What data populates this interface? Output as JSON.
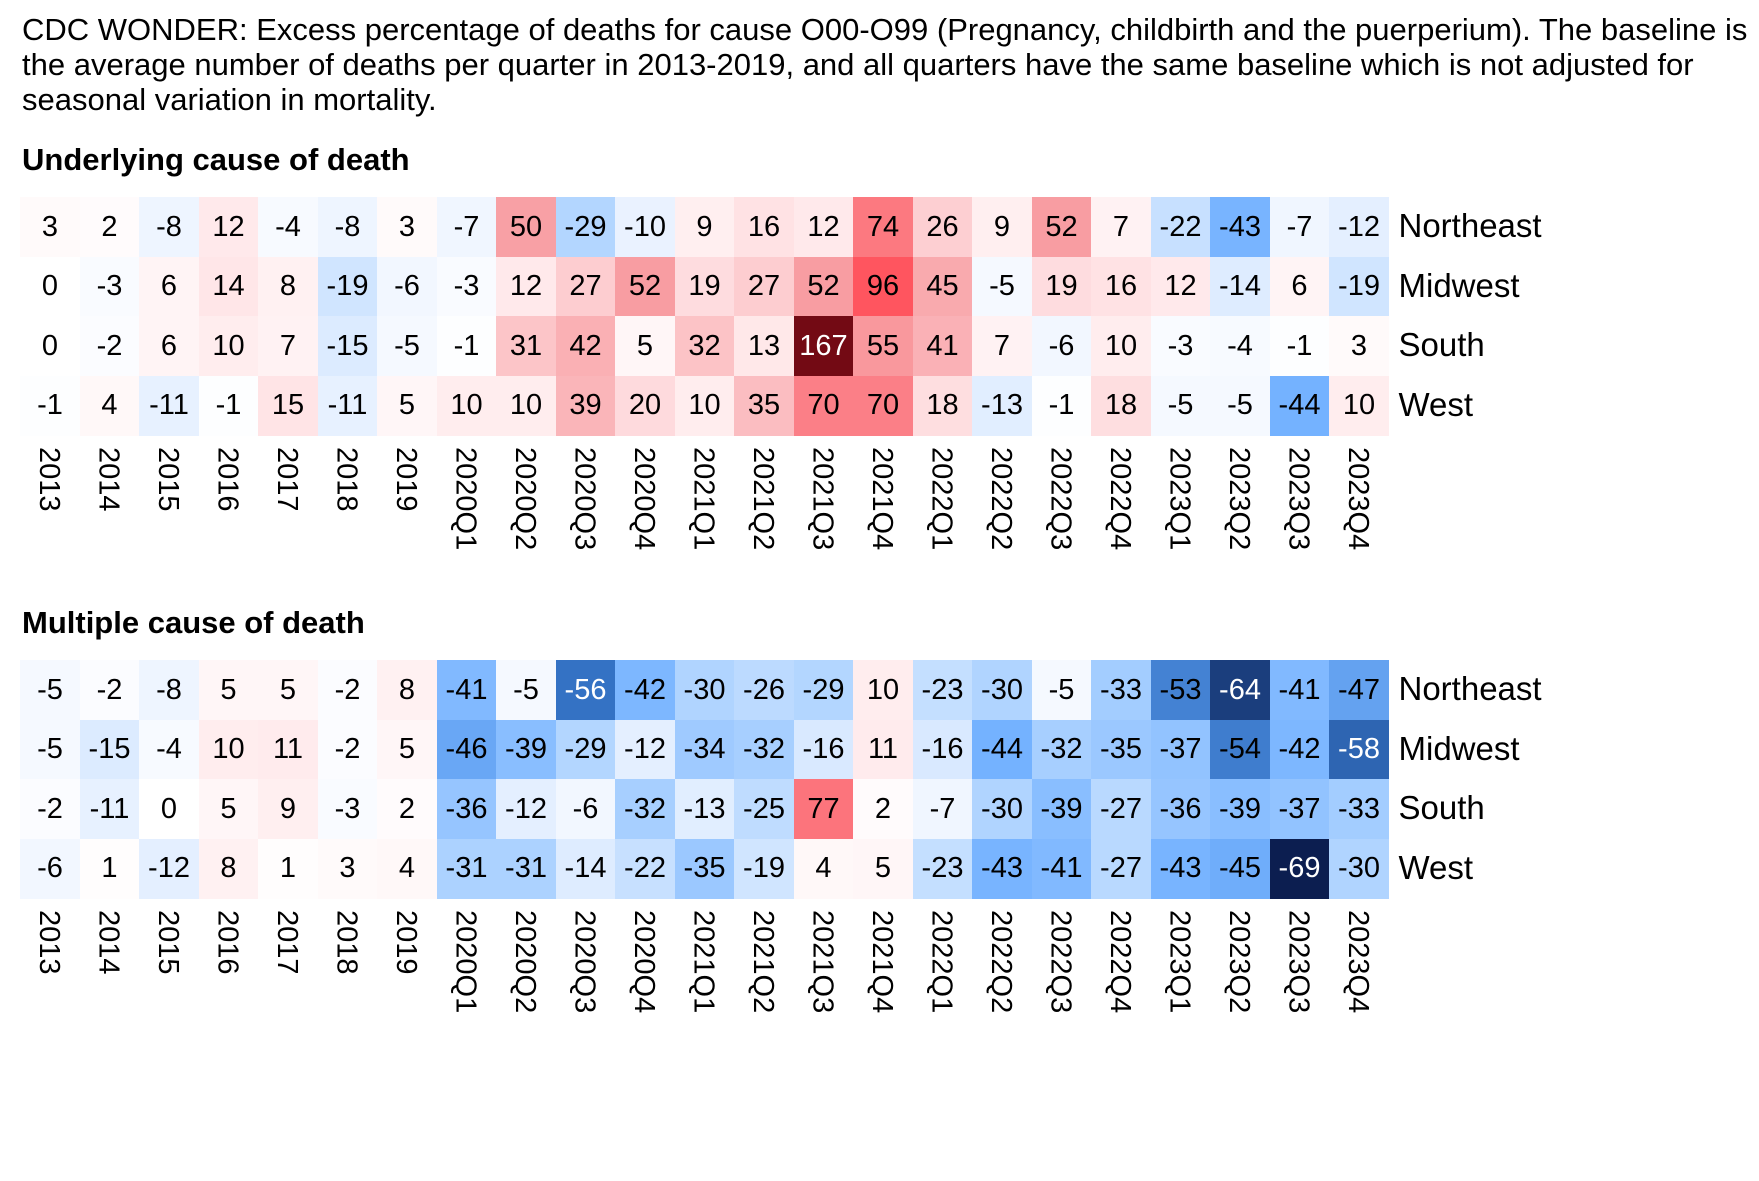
{
  "caption": "CDC WONDER: Excess percentage of deaths for cause O00-O99 (Pregnancy, childbirth and the puerperium). The baseline is the average number of deaths per quarter in 2013-2019, and all quarters have the same baseline which is not adjusted for seasonal variation in mortality.",
  "chart_data": [
    {
      "type": "heatmap",
      "title": "Underlying cause of death",
      "columns": [
        "2013",
        "2014",
        "2015",
        "2016",
        "2017",
        "2018",
        "2019",
        "2020Q1",
        "2020Q2",
        "2020Q3",
        "2020Q4",
        "2021Q1",
        "2021Q2",
        "2021Q3",
        "2021Q4",
        "2022Q1",
        "2022Q2",
        "2022Q3",
        "2022Q4",
        "2023Q1",
        "2023Q2",
        "2023Q3",
        "2023Q4"
      ],
      "rows": [
        "Northeast",
        "Midwest",
        "South",
        "West"
      ],
      "values": [
        [
          3,
          2,
          -8,
          12,
          -4,
          -8,
          3,
          -7,
          50,
          -29,
          -10,
          9,
          16,
          12,
          74,
          26,
          9,
          52,
          7,
          -22,
          -43,
          -7,
          -12
        ],
        [
          0,
          -3,
          6,
          14,
          8,
          -19,
          -6,
          -3,
          12,
          27,
          52,
          19,
          27,
          52,
          96,
          45,
          -5,
          19,
          16,
          12,
          -14,
          6,
          -19
        ],
        [
          0,
          -2,
          6,
          10,
          7,
          -15,
          -5,
          -1,
          31,
          42,
          5,
          32,
          13,
          167,
          55,
          41,
          7,
          -6,
          10,
          -3,
          -4,
          -1,
          3
        ],
        [
          -1,
          4,
          -11,
          -1,
          15,
          -11,
          5,
          10,
          10,
          39,
          20,
          10,
          35,
          70,
          70,
          18,
          -13,
          -1,
          18,
          -5,
          -5,
          -44,
          10
        ]
      ],
      "colormap": "diverging blue-white-red, centered at 0"
    },
    {
      "type": "heatmap",
      "title": "Multiple cause of death",
      "columns": [
        "2013",
        "2014",
        "2015",
        "2016",
        "2017",
        "2018",
        "2019",
        "2020Q1",
        "2020Q2",
        "2020Q3",
        "2020Q4",
        "2021Q1",
        "2021Q2",
        "2021Q3",
        "2021Q4",
        "2022Q1",
        "2022Q2",
        "2022Q3",
        "2022Q4",
        "2023Q1",
        "2023Q2",
        "2023Q3",
        "2023Q4"
      ],
      "rows": [
        "Northeast",
        "Midwest",
        "South",
        "West"
      ],
      "values": [
        [
          -5,
          -2,
          -8,
          5,
          5,
          -2,
          8,
          -41,
          -5,
          -56,
          -42,
          -30,
          -26,
          -29,
          10,
          -23,
          -30,
          -5,
          -33,
          -53,
          -64,
          -41,
          -47
        ],
        [
          -5,
          -15,
          -4,
          10,
          11,
          -2,
          5,
          -46,
          -39,
          -29,
          -12,
          -34,
          -32,
          -16,
          11,
          -16,
          -44,
          -32,
          -35,
          -37,
          -54,
          -42,
          -58
        ],
        [
          -2,
          -11,
          0,
          5,
          9,
          -3,
          2,
          -36,
          -12,
          -6,
          -32,
          -13,
          -25,
          77,
          2,
          -7,
          -30,
          -39,
          -27,
          -36,
          -39,
          -37,
          -33
        ],
        [
          -6,
          1,
          -12,
          8,
          1,
          3,
          4,
          -31,
          -31,
          -14,
          -22,
          -35,
          -19,
          4,
          5,
          -23,
          -43,
          -41,
          -27,
          -43,
          -45,
          -69,
          -30
        ]
      ],
      "colormap": "diverging blue-white-red, centered at 0"
    }
  ]
}
